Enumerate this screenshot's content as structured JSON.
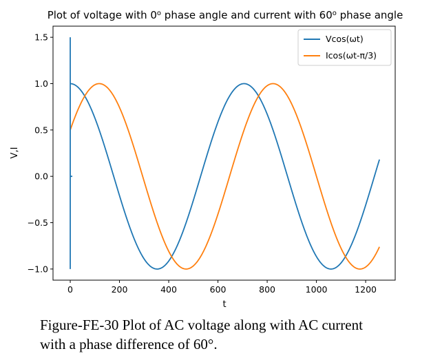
{
  "chart_data": {
    "type": "line",
    "title_main": "Plot of voltage with 0",
    "title_sup1": "o",
    "title_mid": " phase angle and current with 60",
    "title_sup2": "o",
    "title_end": " phase angle",
    "xlabel": "t",
    "ylabel": "V,I",
    "xlim": [
      -70,
      1320
    ],
    "ylim": [
      -1.12,
      1.62
    ],
    "xticks": [
      0,
      200,
      400,
      600,
      800,
      1000,
      1200
    ],
    "yticks": [
      -1.0,
      -0.5,
      0.0,
      0.5,
      1.0,
      1.5
    ],
    "ytick_labels": [
      "−1.0",
      "−0.5",
      "0.0",
      "0.5",
      "1.0",
      "1.5"
    ],
    "x_start": 0,
    "x_end": 1256,
    "period_t": 706,
    "grid": false,
    "legend_position": "top-right",
    "series": [
      {
        "name": "Vcos(ωt)",
        "phase_shift_rad": 0,
        "color": "#1f77b4"
      },
      {
        "name": "Icos(ωt-π/3)",
        "phase_shift_rad": 1.0472,
        "color": "#ff7f0e"
      }
    ],
    "vertical_marker": {
      "x": 0,
      "y_from": -1.0,
      "y_to": 1.5,
      "tick_y": 0.0,
      "color": "#1f77b4"
    }
  },
  "caption": {
    "line1": "Figure-FE-30 Plot of AC voltage along with AC current",
    "line2": "with a phase difference of 60°."
  }
}
